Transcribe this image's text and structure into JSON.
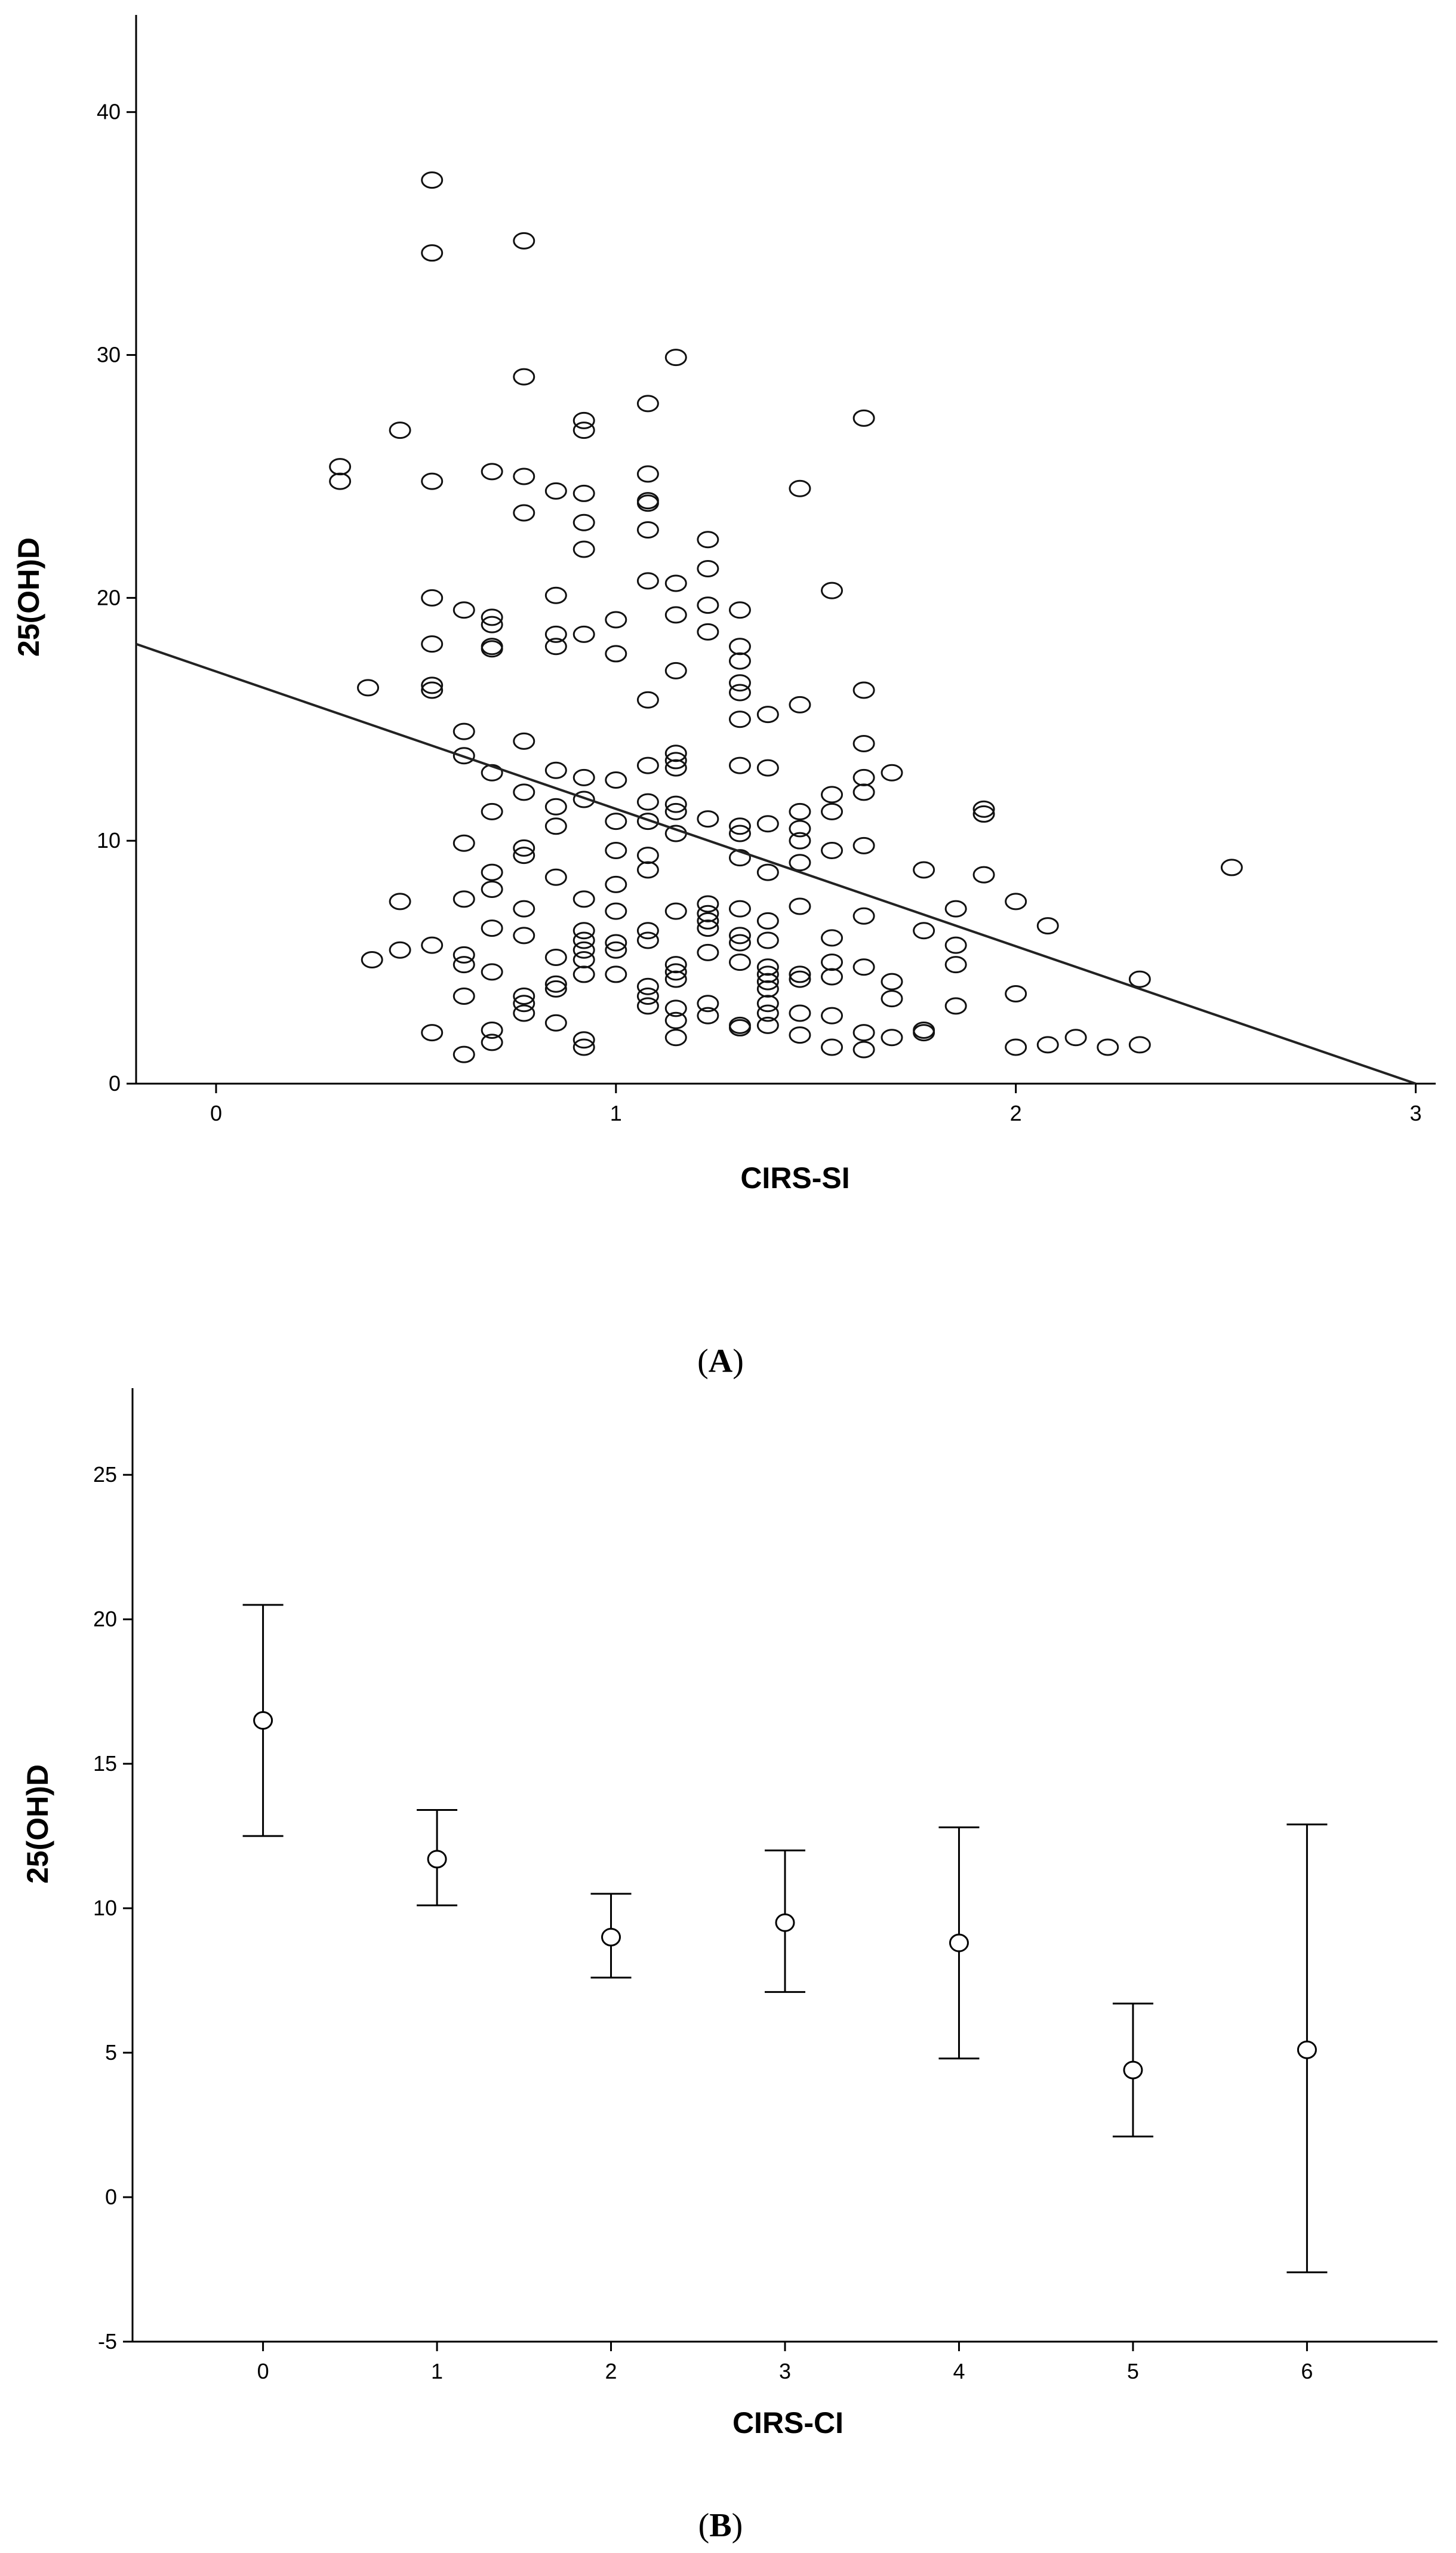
{
  "chart_data": [
    {
      "type": "scatter",
      "panel_label": "A",
      "xlabel": "CIRS-SI",
      "ylabel": "25(OH)D",
      "xlim": [
        -0.2,
        3.05
      ],
      "ylim": [
        0,
        44
      ],
      "xticks": [
        "0",
        "1",
        "2",
        "3"
      ],
      "yticks": [
        "0",
        "10",
        "20",
        "30",
        "40"
      ],
      "grid": false,
      "regression_line": {
        "x": [
          -0.2,
          3.0
        ],
        "y": [
          18.1,
          0.0
        ]
      },
      "points": [
        [
          0.31,
          25.4
        ],
        [
          0.31,
          24.8
        ],
        [
          0.38,
          16.3
        ],
        [
          0.39,
          5.1
        ],
        [
          0.46,
          26.9
        ],
        [
          0.46,
          7.5
        ],
        [
          0.46,
          5.5
        ],
        [
          0.54,
          37.2
        ],
        [
          0.54,
          34.2
        ],
        [
          0.54,
          24.8
        ],
        [
          0.54,
          20.0
        ],
        [
          0.54,
          18.1
        ],
        [
          0.54,
          16.4
        ],
        [
          0.54,
          16.2
        ],
        [
          0.54,
          5.7
        ],
        [
          0.54,
          2.1
        ],
        [
          0.62,
          19.5
        ],
        [
          0.62,
          14.5
        ],
        [
          0.62,
          13.5
        ],
        [
          0.62,
          9.9
        ],
        [
          0.62,
          7.6
        ],
        [
          0.62,
          5.3
        ],
        [
          0.62,
          4.9
        ],
        [
          0.62,
          3.6
        ],
        [
          0.62,
          1.2
        ],
        [
          0.69,
          25.2
        ],
        [
          0.69,
          19.2
        ],
        [
          0.69,
          18.9
        ],
        [
          0.69,
          18.0
        ],
        [
          0.69,
          17.9
        ],
        [
          0.69,
          12.8
        ],
        [
          0.69,
          11.2
        ],
        [
          0.69,
          8.7
        ],
        [
          0.69,
          8.0
        ],
        [
          0.69,
          6.4
        ],
        [
          0.69,
          4.6
        ],
        [
          0.69,
          2.2
        ],
        [
          0.69,
          1.7
        ],
        [
          0.77,
          34.7
        ],
        [
          0.77,
          29.1
        ],
        [
          0.77,
          25.0
        ],
        [
          0.77,
          23.5
        ],
        [
          0.77,
          14.1
        ],
        [
          0.77,
          12.0
        ],
        [
          0.77,
          9.7
        ],
        [
          0.77,
          9.4
        ],
        [
          0.77,
          7.2
        ],
        [
          0.77,
          6.1
        ],
        [
          0.77,
          3.6
        ],
        [
          0.77,
          3.3
        ],
        [
          0.77,
          2.9
        ],
        [
          0.85,
          24.4
        ],
        [
          0.85,
          20.1
        ],
        [
          0.85,
          18.5
        ],
        [
          0.85,
          18.0
        ],
        [
          0.85,
          12.9
        ],
        [
          0.85,
          11.4
        ],
        [
          0.85,
          10.6
        ],
        [
          0.85,
          8.5
        ],
        [
          0.85,
          5.2
        ],
        [
          0.85,
          4.1
        ],
        [
          0.85,
          3.9
        ],
        [
          0.85,
          2.5
        ],
        [
          0.92,
          27.3
        ],
        [
          0.92,
          26.9
        ],
        [
          0.92,
          24.3
        ],
        [
          0.92,
          23.1
        ],
        [
          0.92,
          22.0
        ],
        [
          0.92,
          18.5
        ],
        [
          0.92,
          12.6
        ],
        [
          0.92,
          11.7
        ],
        [
          0.92,
          7.6
        ],
        [
          0.92,
          6.3
        ],
        [
          0.92,
          5.9
        ],
        [
          0.92,
          5.5
        ],
        [
          0.92,
          5.1
        ],
        [
          0.92,
          4.5
        ],
        [
          0.92,
          1.8
        ],
        [
          0.92,
          1.5
        ],
        [
          1.0,
          19.1
        ],
        [
          1.0,
          17.7
        ],
        [
          1.0,
          12.5
        ],
        [
          1.0,
          10.8
        ],
        [
          1.0,
          9.6
        ],
        [
          1.0,
          8.2
        ],
        [
          1.0,
          7.1
        ],
        [
          1.0,
          5.8
        ],
        [
          1.0,
          5.5
        ],
        [
          1.0,
          4.5
        ],
        [
          1.08,
          28.0
        ],
        [
          1.08,
          25.1
        ],
        [
          1.08,
          24.0
        ],
        [
          1.08,
          23.9
        ],
        [
          1.08,
          22.8
        ],
        [
          1.08,
          20.7
        ],
        [
          1.08,
          15.8
        ],
        [
          1.08,
          13.1
        ],
        [
          1.08,
          11.6
        ],
        [
          1.08,
          10.8
        ],
        [
          1.08,
          9.4
        ],
        [
          1.08,
          8.8
        ],
        [
          1.08,
          6.3
        ],
        [
          1.08,
          5.9
        ],
        [
          1.08,
          4.0
        ],
        [
          1.08,
          3.6
        ],
        [
          1.08,
          3.2
        ],
        [
          1.15,
          29.9
        ],
        [
          1.15,
          20.6
        ],
        [
          1.15,
          19.3
        ],
        [
          1.15,
          17.0
        ],
        [
          1.15,
          13.6
        ],
        [
          1.15,
          13.3
        ],
        [
          1.15,
          13.0
        ],
        [
          1.15,
          11.5
        ],
        [
          1.15,
          11.2
        ],
        [
          1.15,
          10.3
        ],
        [
          1.15,
          7.1
        ],
        [
          1.15,
          4.9
        ],
        [
          1.15,
          4.6
        ],
        [
          1.15,
          4.3
        ],
        [
          1.15,
          3.1
        ],
        [
          1.15,
          2.6
        ],
        [
          1.15,
          1.9
        ],
        [
          1.23,
          22.4
        ],
        [
          1.23,
          21.2
        ],
        [
          1.23,
          19.7
        ],
        [
          1.23,
          18.6
        ],
        [
          1.23,
          10.9
        ],
        [
          1.23,
          7.4
        ],
        [
          1.23,
          7.0
        ],
        [
          1.23,
          6.7
        ],
        [
          1.23,
          6.4
        ],
        [
          1.23,
          5.4
        ],
        [
          1.23,
          3.3
        ],
        [
          1.23,
          2.8
        ],
        [
          1.31,
          19.5
        ],
        [
          1.31,
          18.0
        ],
        [
          1.31,
          17.4
        ],
        [
          1.31,
          16.5
        ],
        [
          1.31,
          16.1
        ],
        [
          1.31,
          15.0
        ],
        [
          1.31,
          13.1
        ],
        [
          1.31,
          10.6
        ],
        [
          1.31,
          10.3
        ],
        [
          1.31,
          9.3
        ],
        [
          1.31,
          7.2
        ],
        [
          1.31,
          6.1
        ],
        [
          1.31,
          5.8
        ],
        [
          1.31,
          5.0
        ],
        [
          1.31,
          2.4
        ],
        [
          1.31,
          2.3
        ],
        [
          1.38,
          15.2
        ],
        [
          1.38,
          13.0
        ],
        [
          1.38,
          10.7
        ],
        [
          1.38,
          8.7
        ],
        [
          1.38,
          6.7
        ],
        [
          1.38,
          5.9
        ],
        [
          1.38,
          4.8
        ],
        [
          1.38,
          4.5
        ],
        [
          1.38,
          4.2
        ],
        [
          1.38,
          3.9
        ],
        [
          1.38,
          3.3
        ],
        [
          1.38,
          2.9
        ],
        [
          1.38,
          2.4
        ],
        [
          1.46,
          24.5
        ],
        [
          1.46,
          15.6
        ],
        [
          1.46,
          11.2
        ],
        [
          1.46,
          10.5
        ],
        [
          1.46,
          10.0
        ],
        [
          1.46,
          9.1
        ],
        [
          1.46,
          7.3
        ],
        [
          1.46,
          4.5
        ],
        [
          1.46,
          4.3
        ],
        [
          1.46,
          2.9
        ],
        [
          1.46,
          2.0
        ],
        [
          1.54,
          20.3
        ],
        [
          1.54,
          11.9
        ],
        [
          1.54,
          11.2
        ],
        [
          1.54,
          9.6
        ],
        [
          1.54,
          6.0
        ],
        [
          1.54,
          5.0
        ],
        [
          1.54,
          4.4
        ],
        [
          1.54,
          2.8
        ],
        [
          1.54,
          1.5
        ],
        [
          1.62,
          27.4
        ],
        [
          1.62,
          16.2
        ],
        [
          1.62,
          14.0
        ],
        [
          1.62,
          12.6
        ],
        [
          1.62,
          12.0
        ],
        [
          1.62,
          9.8
        ],
        [
          1.62,
          6.9
        ],
        [
          1.62,
          4.8
        ],
        [
          1.62,
          2.1
        ],
        [
          1.62,
          1.4
        ],
        [
          1.69,
          12.8
        ],
        [
          1.69,
          4.2
        ],
        [
          1.69,
          3.5
        ],
        [
          1.69,
          1.9
        ],
        [
          1.77,
          8.8
        ],
        [
          1.77,
          6.3
        ],
        [
          1.77,
          2.2
        ],
        [
          1.77,
          2.1
        ],
        [
          1.85,
          7.2
        ],
        [
          1.85,
          5.7
        ],
        [
          1.85,
          4.9
        ],
        [
          1.85,
          3.2
        ],
        [
          1.92,
          11.3
        ],
        [
          1.92,
          11.1
        ],
        [
          1.92,
          8.6
        ],
        [
          2.0,
          7.5
        ],
        [
          2.0,
          3.7
        ],
        [
          2.0,
          1.5
        ],
        [
          2.08,
          6.5
        ],
        [
          2.08,
          1.6
        ],
        [
          2.15,
          1.9
        ],
        [
          2.23,
          1.5
        ],
        [
          2.31,
          4.3
        ],
        [
          2.31,
          1.6
        ],
        [
          2.54,
          8.9
        ]
      ]
    },
    {
      "type": "errorbar",
      "panel_label": "B",
      "xlabel": "CIRS-CI",
      "ylabel": "25(OH)D",
      "xlim": [
        -0.75,
        6.75
      ],
      "ylim": [
        -5,
        28
      ],
      "xticks": [
        "0",
        "1",
        "2",
        "3",
        "4",
        "5",
        "6"
      ],
      "yticks": [
        "-5",
        "0",
        "5",
        "10",
        "15",
        "20",
        "25"
      ],
      "grid": false,
      "categories": [
        0,
        1,
        2,
        3,
        4,
        5,
        6
      ],
      "means": [
        16.5,
        11.7,
        9.0,
        9.5,
        8.8,
        4.4,
        5.1
      ],
      "lower": [
        12.5,
        10.1,
        7.6,
        7.1,
        4.8,
        2.1,
        -2.6
      ],
      "upper": [
        20.5,
        13.4,
        10.5,
        12.0,
        12.8,
        6.7,
        12.9
      ]
    }
  ]
}
